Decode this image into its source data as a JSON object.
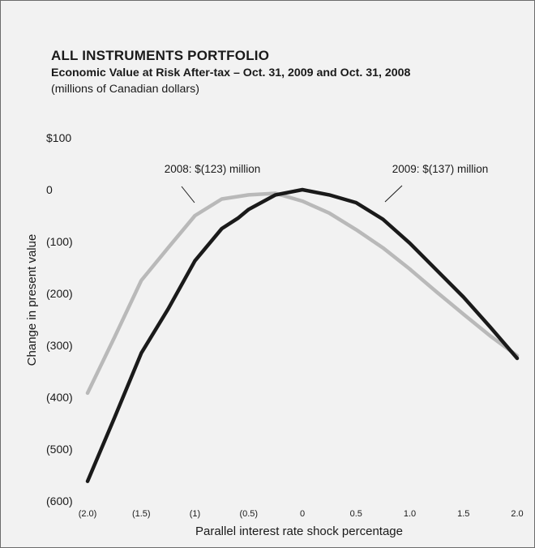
{
  "chart_data": {
    "type": "line",
    "title": "ALL INSTRUMENTS PORTFOLIO",
    "subtitle": "Economic Value at Risk After-tax – Oct. 31, 2009 and Oct. 31, 2008",
    "units": "(millions of Canadian dollars)",
    "xlabel": "Parallel interest rate shock percentage",
    "ylabel": "Change in present value",
    "xlim": [
      -2.0,
      2.0
    ],
    "ylim": [
      -600,
      100
    ],
    "x_ticks": [
      -2.0,
      -1.5,
      -1.0,
      -0.5,
      0,
      0.5,
      1.0,
      1.5,
      2.0
    ],
    "x_tick_labels": [
      "(2.0)",
      "(1.5)",
      "(1)",
      "(0.5)",
      "0",
      "0.5",
      "1.0",
      "1.5",
      "2.0"
    ],
    "y_ticks": [
      100,
      0,
      -100,
      -200,
      -300,
      -400,
      -500,
      -600
    ],
    "y_tick_labels": [
      "$100",
      "0",
      "(100)",
      "(200)",
      "(300)",
      "(400)",
      "(500)",
      "(600)"
    ],
    "grid": false,
    "series": [
      {
        "name": "2008",
        "color": "#b9b9b9",
        "x": [
          -2.0,
          -1.75,
          -1.5,
          -1.25,
          -1.0,
          -0.75,
          -0.5,
          -0.25,
          0,
          0.25,
          0.5,
          0.75,
          1.0,
          1.25,
          1.5,
          1.75,
          2.0
        ],
        "y": [
          -392,
          -285,
          -175,
          -112,
          -50,
          -18,
          -10,
          -7,
          -22,
          -45,
          -77,
          -112,
          -153,
          -197,
          -240,
          -282,
          -320
        ]
      },
      {
        "name": "2009",
        "color": "#1a1a1a",
        "x": [
          -2.0,
          -1.75,
          -1.5,
          -1.25,
          -1.0,
          -0.75,
          -0.6,
          -0.5,
          -0.25,
          0,
          0.25,
          0.5,
          0.75,
          1.0,
          1.25,
          1.5,
          1.75,
          2.0
        ],
        "y": [
          -562,
          -440,
          -315,
          -230,
          -137,
          -75,
          -55,
          -38,
          -10,
          0,
          -10,
          -25,
          -57,
          -103,
          -155,
          -207,
          -265,
          -325
        ]
      }
    ],
    "annotations": [
      {
        "text": "2008: $(123) million",
        "series": "2008"
      },
      {
        "text": "2009: $(137) million",
        "series": "2009"
      }
    ]
  }
}
